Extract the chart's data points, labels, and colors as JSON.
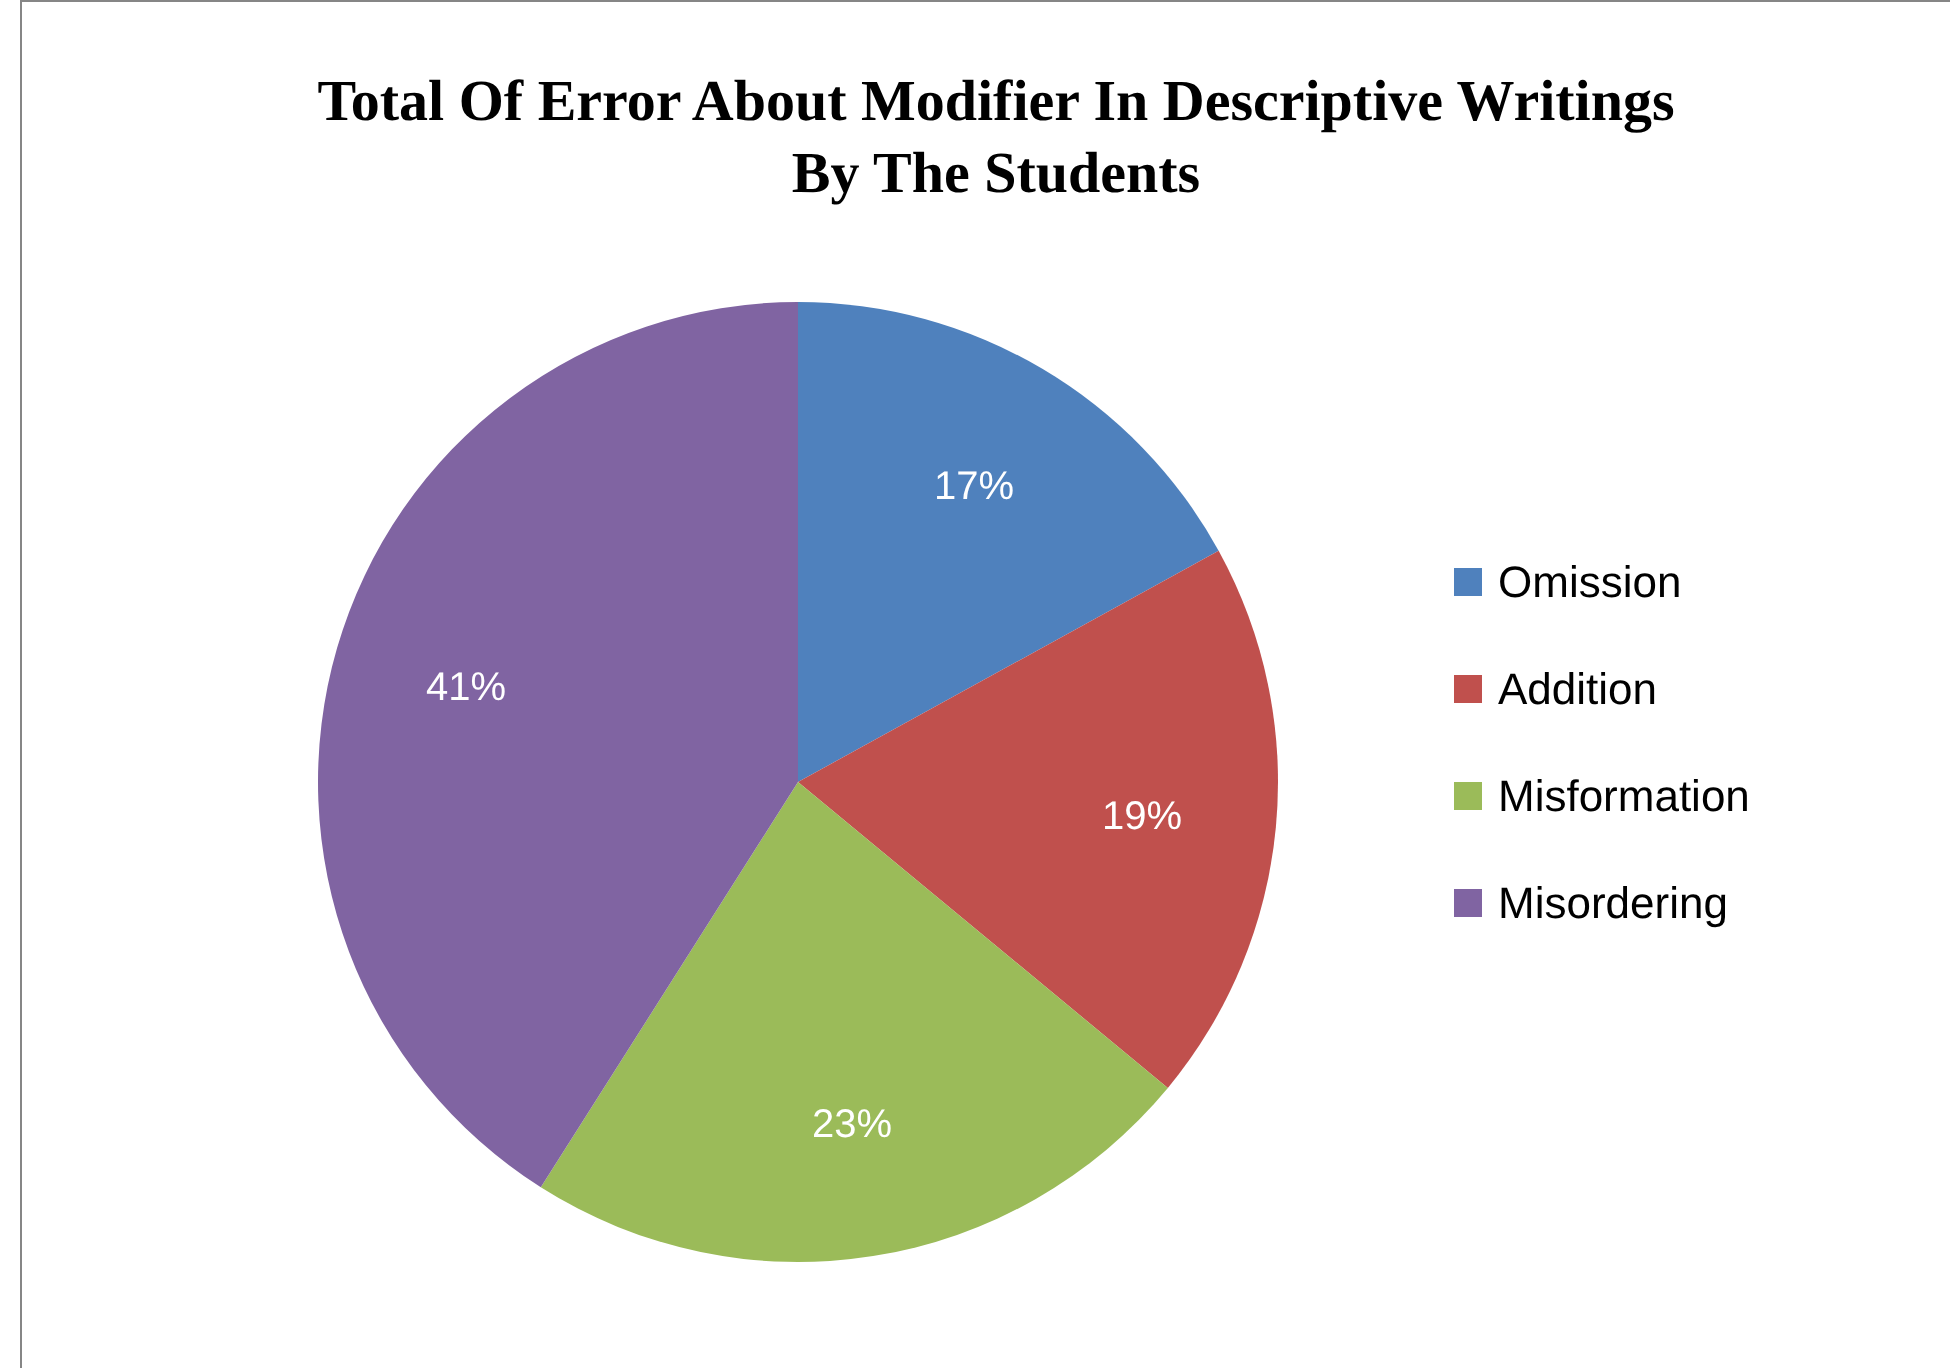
{
  "chart_data": {
    "type": "pie",
    "title": "Total Of Error About Modifier In Descriptive Writings\nBy The Students",
    "categories": [
      "Omission",
      "Addition",
      "Misformation",
      "Misordering"
    ],
    "values": [
      17,
      19,
      23,
      41
    ],
    "value_labels": [
      "17%",
      "19%",
      "23%",
      "41%"
    ],
    "colors": [
      "#4f81bd",
      "#c0504d",
      "#9bbb59",
      "#8064a2"
    ],
    "legend": "right"
  }
}
